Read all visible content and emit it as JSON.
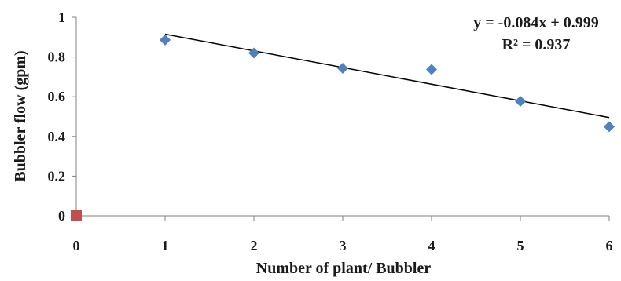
{
  "chart_data": {
    "type": "scatter",
    "title": "",
    "xlabel": "Number of plant/ Bubbler",
    "ylabel": "Bubbler flow (gpm)",
    "xlim": [
      0,
      6
    ],
    "ylim": [
      0,
      1
    ],
    "x_ticks": [
      "0",
      "1",
      "2",
      "3",
      "4",
      "5",
      "6"
    ],
    "y_ticks": [
      "0",
      "0.2",
      "0.4",
      "0.6",
      "0.8",
      "1"
    ],
    "grid": false,
    "series": [
      {
        "marker": "diamond",
        "color": "#4f81bd",
        "x": [
          1,
          2,
          3,
          4,
          5,
          6
        ],
        "y": [
          0.886,
          0.82,
          0.743,
          0.737,
          0.577,
          0.449
        ]
      },
      {
        "marker": "square",
        "color": "#c0504d",
        "x": [
          0
        ],
        "y": [
          0
        ]
      }
    ],
    "trendline": {
      "slope": -0.084,
      "intercept": 0.999,
      "x_range": [
        1,
        6
      ],
      "color": "#000000",
      "equation": "y = -0.084x + 0.999",
      "r_squared": "R² = 0.937"
    }
  }
}
